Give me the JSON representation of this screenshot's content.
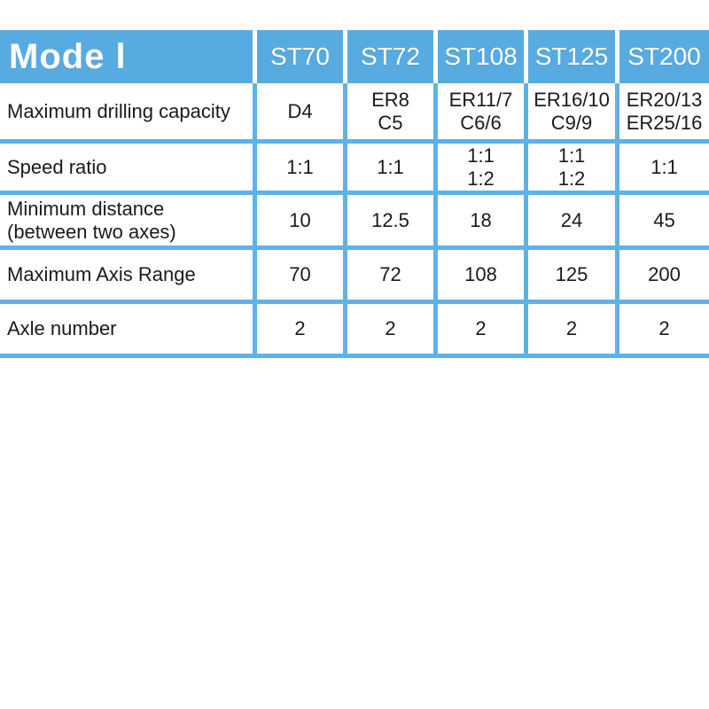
{
  "colors": {
    "header_bg": "#58ABE0",
    "grid": "#5FB2E8",
    "header_text": "#ffffff",
    "body_text": "#1a1a1a",
    "page_bg": "#ffffff"
  },
  "table": {
    "header": {
      "model_label": "Mode l",
      "columns": [
        "ST70",
        "ST72",
        "ST108",
        "ST125",
        "ST200"
      ]
    },
    "rows": [
      {
        "label": "Maximum drilling capacity",
        "values": [
          "D4",
          "ER8\nC5",
          "ER11/7\nC6/6",
          "ER16/10\nC9/9",
          "ER20/13\nER25/16"
        ]
      },
      {
        "label": "Speed ratio",
        "values": [
          "1:1",
          "1:1",
          "1:1\n1:2",
          "1:1\n1:2",
          "1:1"
        ]
      },
      {
        "label": "Minimum distance\n(between two axes)",
        "values": [
          "10",
          "12.5",
          "18",
          "24",
          "45"
        ]
      },
      {
        "label": "Maximum Axis Range",
        "values": [
          "70",
          "72",
          "108",
          "125",
          "200"
        ]
      },
      {
        "label": "Axle number",
        "values": [
          "2",
          "2",
          "2",
          "2",
          "2"
        ]
      }
    ]
  }
}
